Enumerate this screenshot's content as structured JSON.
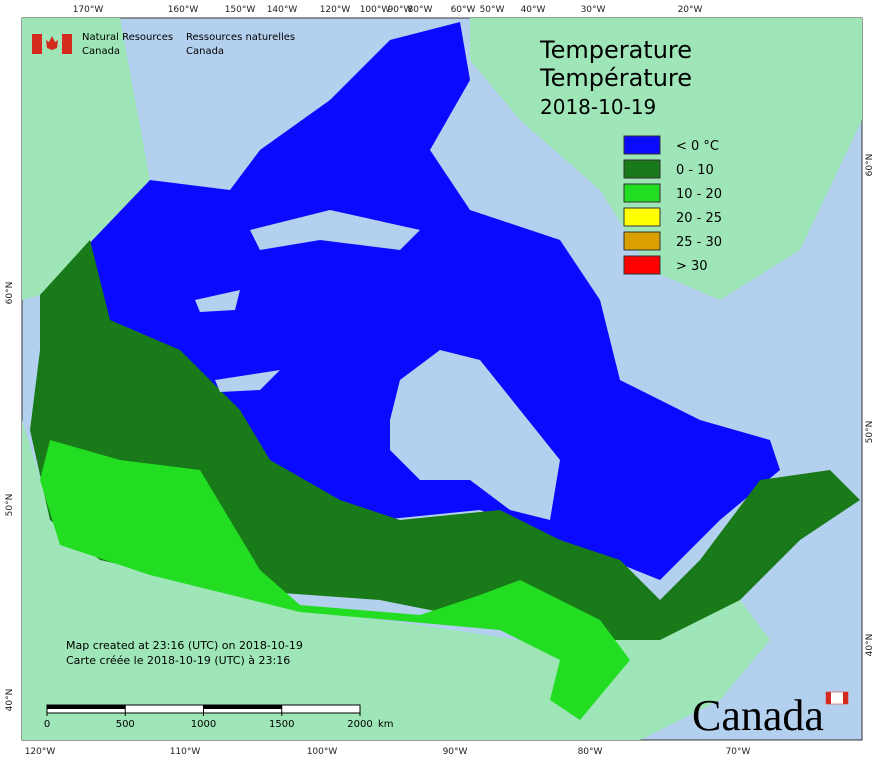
{
  "graticule": {
    "top": [
      "170°W",
      "160°W",
      "150°W",
      "140°W",
      "120°W",
      "100°W",
      "90°W",
      "80°W",
      "60°W",
      "50°W",
      "40°W",
      "30°W",
      "20°W"
    ],
    "bottom": [
      "120°W",
      "110°W",
      "100°W",
      "90°W",
      "80°W",
      "70°W"
    ],
    "left": [
      "60°N",
      "50°N",
      "40°N"
    ],
    "right": [
      "60°N",
      "50°N",
      "40°N"
    ]
  },
  "agency": {
    "en": [
      "Natural Resources",
      "Canada"
    ],
    "fr": [
      "Ressources naturelles",
      "Canada"
    ]
  },
  "title": {
    "en": "Temperature",
    "fr": "Température",
    "date": "2018-10-19"
  },
  "legend": [
    {
      "label": "< 0 °C",
      "color": "#0a0aff"
    },
    {
      "label": "0 - 10",
      "color": "#187a18"
    },
    {
      "label": "10 - 20",
      "color": "#22dd22"
    },
    {
      "label": "20 - 25",
      "color": "#ffff00"
    },
    {
      "label": "25 - 30",
      "color": "#daa000"
    },
    {
      "label": "> 30",
      "color": "#ff0000"
    }
  ],
  "footer": {
    "en": "Map created at 23:16 (UTC) on 2018-10-19",
    "fr": "Carte créée le 2018-10-19 (UTC) à 23:16"
  },
  "scale": {
    "ticks": [
      0,
      500,
      1000,
      1500,
      2000
    ],
    "unit": "km"
  },
  "wordmark": "Canada"
}
